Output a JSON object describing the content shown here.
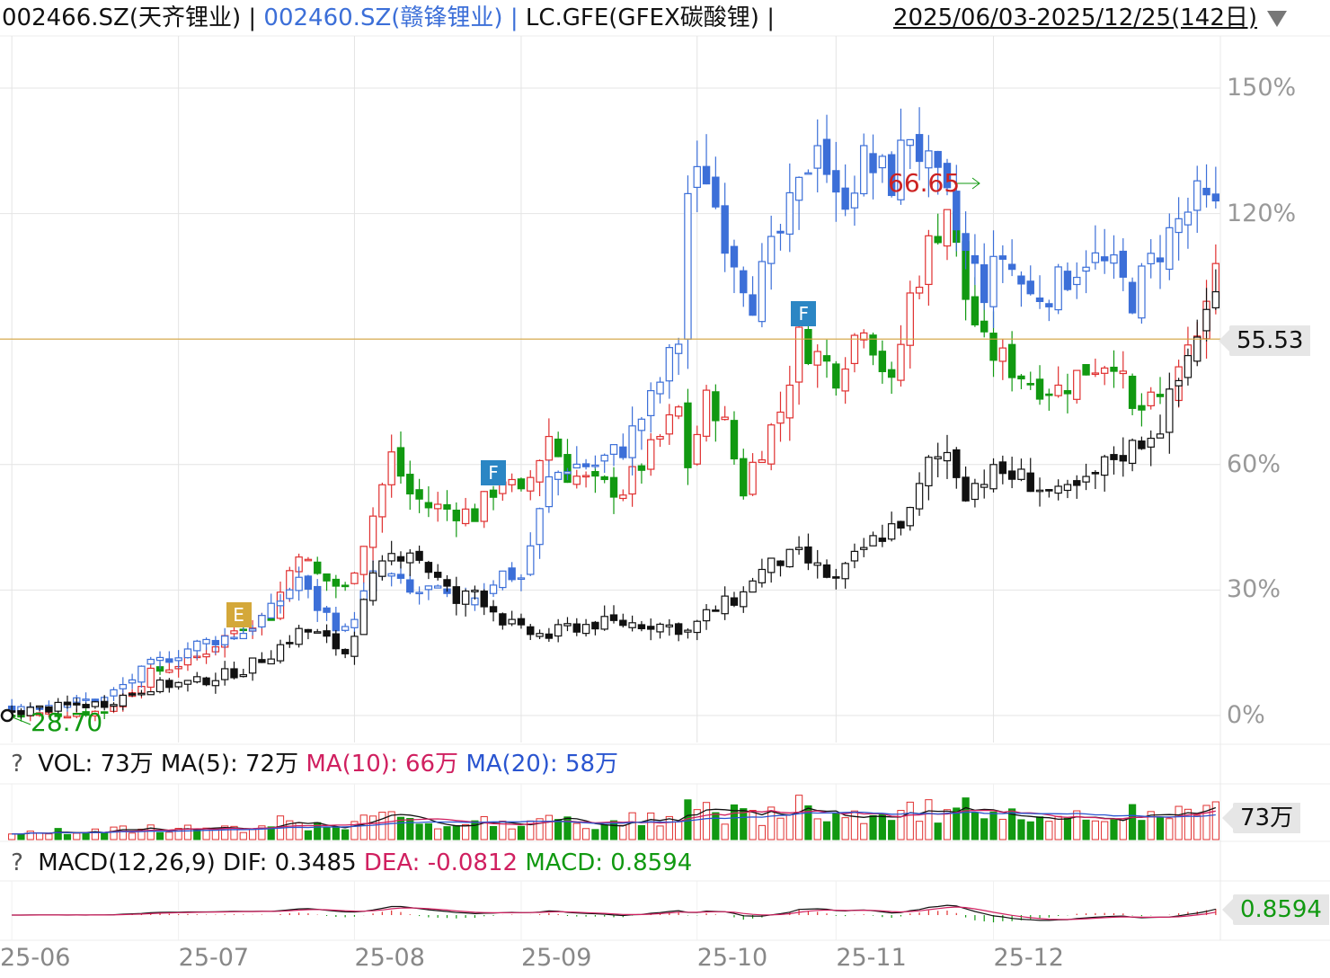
{
  "header": {
    "series1": "002466.SZ(天齐锂业)",
    "series2": "002460.SZ(赣锋锂业)",
    "series3": "LC.GFE(GFEX碳酸锂)",
    "sep": "|",
    "range": "2025/06/03-2025/12/25(142日)",
    "dropdown_icon": "triangle-down-icon"
  },
  "colors": {
    "up": "#e03030",
    "down": "#119911",
    "black": "#111111",
    "blue": "#3c6fd8",
    "ma5": "#111111",
    "ma10": "#d02060",
    "ma20": "#2a55d0",
    "ref": "#d6a640",
    "grid": "#e4e4e4"
  },
  "main_chart": {
    "y_ticks": [
      "150%",
      "120%",
      "60%",
      "30%",
      "0%"
    ],
    "y_tick_values": [
      150,
      120,
      60,
      30,
      0
    ],
    "current_price_label": "55.53",
    "current_price_pct": 90,
    "min_label": "28.70",
    "max_label": "66.65",
    "events": [
      {
        "label": "E",
        "color": "#d4a83a",
        "day": 49,
        "pct": 24
      },
      {
        "label": "F",
        "color": "#2b86c4",
        "day": 104,
        "pct": 58
      },
      {
        "label": "F",
        "color": "#2b86c4",
        "day": 171,
        "pct": 96
      }
    ]
  },
  "x_labels": [
    "25-06",
    "25-07",
    "25-08",
    "25-09",
    "25-10",
    "25-11",
    "25-12"
  ],
  "x_label_days": [
    0,
    36,
    74,
    110,
    148,
    178,
    212
  ],
  "volume_panel": {
    "help": "?",
    "vol": "VOL: 73万",
    "ma5": "MA(5): 72万",
    "ma10": "MA(10): 66万",
    "ma20": "MA(20): 58万",
    "badge": "73万"
  },
  "macd_panel": {
    "help": "?",
    "title": "MACD(12,26,9)",
    "dif": "DIF: 0.3485",
    "dea": "DEA: -0.0812",
    "macd": "MACD: 0.8594",
    "badge": "0.8594"
  },
  "chart_data": {
    "type": "candlestick",
    "x_range": [
      "2025/06/03",
      "2025/12/25"
    ],
    "trading_days": 142,
    "y_unit": "% change from start",
    "ylim": [
      -5,
      160
    ],
    "series": [
      {
        "name": "002466.SZ(天齐锂业)",
        "style": "candle-red-green",
        "anchors": [
          [
            0,
            0
          ],
          [
            20,
            1
          ],
          [
            30,
            10
          ],
          [
            40,
            14
          ],
          [
            50,
            22
          ],
          [
            56,
            24
          ],
          [
            62,
            40
          ],
          [
            65,
            34
          ],
          [
            72,
            30
          ],
          [
            78,
            48
          ],
          [
            82,
            62
          ],
          [
            86,
            53
          ],
          [
            90,
            50
          ],
          [
            96,
            49
          ],
          [
            100,
            48
          ],
          [
            106,
            57
          ],
          [
            110,
            52
          ],
          [
            116,
            67
          ],
          [
            120,
            58
          ],
          [
            126,
            55
          ],
          [
            132,
            54
          ],
          [
            138,
            63
          ],
          [
            144,
            73
          ],
          [
            146,
            60
          ],
          [
            150,
            75
          ],
          [
            153,
            73
          ],
          [
            158,
            54
          ],
          [
            160,
            60
          ],
          [
            166,
            73
          ],
          [
            170,
            90
          ],
          [
            174,
            86
          ],
          [
            178,
            82
          ],
          [
            184,
            95
          ],
          [
            190,
            78
          ],
          [
            194,
            100
          ],
          [
            198,
            112
          ],
          [
            202,
            122
          ],
          [
            206,
            100
          ],
          [
            210,
            88
          ],
          [
            214,
            85
          ],
          [
            220,
            80
          ],
          [
            226,
            78
          ],
          [
            232,
            83
          ],
          [
            238,
            86
          ],
          [
            242,
            72
          ],
          [
            248,
            75
          ],
          [
            252,
            80
          ],
          [
            256,
            92
          ],
          [
            260,
            105
          ]
        ]
      },
      {
        "name": "002460.SZ(赣锋锂业)",
        "style": "candle-blue",
        "anchors": [
          [
            0,
            2
          ],
          [
            20,
            4
          ],
          [
            30,
            12
          ],
          [
            40,
            17
          ],
          [
            50,
            20
          ],
          [
            56,
            25
          ],
          [
            62,
            33
          ],
          [
            65,
            27
          ],
          [
            72,
            20
          ],
          [
            78,
            33
          ],
          [
            82,
            33
          ],
          [
            86,
            29
          ],
          [
            90,
            30
          ],
          [
            96,
            27
          ],
          [
            100,
            29
          ],
          [
            106,
            34
          ],
          [
            110,
            33
          ],
          [
            116,
            56
          ],
          [
            120,
            60
          ],
          [
            126,
            60
          ],
          [
            132,
            64
          ],
          [
            138,
            75
          ],
          [
            144,
            90
          ],
          [
            146,
            125
          ],
          [
            150,
            130
          ],
          [
            153,
            118
          ],
          [
            158,
            105
          ],
          [
            160,
            100
          ],
          [
            166,
            115
          ],
          [
            170,
            125
          ],
          [
            174,
            140
          ],
          [
            178,
            122
          ],
          [
            184,
            132
          ],
          [
            190,
            128
          ],
          [
            194,
            140
          ],
          [
            198,
            130
          ],
          [
            202,
            122
          ],
          [
            206,
            110
          ],
          [
            210,
            102
          ],
          [
            214,
            110
          ],
          [
            220,
            100
          ],
          [
            226,
            103
          ],
          [
            232,
            110
          ],
          [
            238,
            106
          ],
          [
            242,
            100
          ],
          [
            248,
            112
          ],
          [
            252,
            118
          ],
          [
            256,
            123
          ],
          [
            260,
            120
          ]
        ]
      },
      {
        "name": "LC.GFE(GFEX碳酸锂)",
        "style": "candle-black",
        "anchors": [
          [
            0,
            1
          ],
          [
            20,
            3
          ],
          [
            30,
            7
          ],
          [
            40,
            8
          ],
          [
            50,
            11
          ],
          [
            56,
            15
          ],
          [
            62,
            20
          ],
          [
            65,
            20
          ],
          [
            72,
            15
          ],
          [
            78,
            32
          ],
          [
            82,
            38
          ],
          [
            86,
            40
          ],
          [
            90,
            35
          ],
          [
            96,
            27
          ],
          [
            100,
            30
          ],
          [
            106,
            23
          ],
          [
            110,
            20
          ],
          [
            116,
            19
          ],
          [
            120,
            21
          ],
          [
            126,
            22
          ],
          [
            132,
            22
          ],
          [
            138,
            22
          ],
          [
            144,
            21
          ],
          [
            146,
            20
          ],
          [
            150,
            24
          ],
          [
            153,
            26
          ],
          [
            158,
            29
          ],
          [
            160,
            33
          ],
          [
            166,
            37
          ],
          [
            170,
            38
          ],
          [
            174,
            35
          ],
          [
            178,
            32
          ],
          [
            184,
            40
          ],
          [
            190,
            45
          ],
          [
            194,
            48
          ],
          [
            198,
            60
          ],
          [
            202,
            63
          ],
          [
            206,
            54
          ],
          [
            210,
            57
          ],
          [
            214,
            58
          ],
          [
            220,
            56
          ],
          [
            226,
            52
          ],
          [
            232,
            55
          ],
          [
            238,
            62
          ],
          [
            242,
            64
          ],
          [
            248,
            70
          ],
          [
            252,
            80
          ],
          [
            256,
            92
          ],
          [
            260,
            100
          ]
        ]
      }
    ],
    "volume_ma": [
      "MA(5)",
      "MA(10)",
      "MA(20)"
    ],
    "macd_lines": [
      "DIF",
      "DEA"
    ]
  }
}
